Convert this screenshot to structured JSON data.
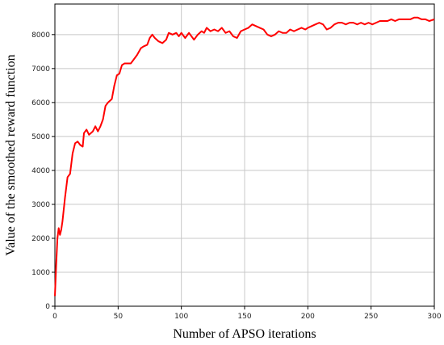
{
  "chart_data": {
    "type": "line",
    "xlabel": "Number of APSO iterations",
    "ylabel": "Value of the smoothed reward function",
    "x": [
      0,
      1,
      2,
      3,
      4,
      5,
      6,
      8,
      10,
      12,
      14,
      16,
      18,
      20,
      22,
      23,
      25,
      27,
      30,
      32,
      34,
      36,
      38,
      40,
      42,
      45,
      47,
      49,
      51,
      53,
      55,
      58,
      60,
      63,
      65,
      68,
      70,
      73,
      75,
      77,
      79,
      82,
      85,
      88,
      90,
      93,
      96,
      98,
      100,
      103,
      106,
      108,
      110,
      113,
      116,
      118,
      120,
      123,
      126,
      129,
      132,
      135,
      138,
      141,
      144,
      147,
      150,
      153,
      156,
      159,
      162,
      165,
      168,
      171,
      174,
      177,
      180,
      183,
      186,
      189,
      192,
      195,
      198,
      200,
      203,
      206,
      209,
      212,
      215,
      218,
      221,
      224,
      227,
      230,
      233,
      236,
      239,
      242,
      245,
      248,
      251,
      254,
      257,
      260,
      263,
      266,
      269,
      272,
      275,
      278,
      281,
      284,
      287,
      290,
      293,
      296,
      300
    ],
    "series": [
      {
        "name": "smoothed reward",
        "color": "#ff0000",
        "values": [
          300,
          1200,
          2000,
          2300,
          2100,
          2250,
          2500,
          3200,
          3800,
          3900,
          4500,
          4800,
          4850,
          4750,
          4700,
          5100,
          5200,
          5050,
          5150,
          5300,
          5150,
          5300,
          5500,
          5900,
          6000,
          6100,
          6500,
          6800,
          6850,
          7100,
          7150,
          7150,
          7150,
          7300,
          7400,
          7600,
          7650,
          7700,
          7900,
          8000,
          7900,
          7800,
          7750,
          7850,
          8050,
          8000,
          8050,
          7950,
          8050,
          7900,
          8050,
          7950,
          7850,
          8000,
          8100,
          8050,
          8200,
          8100,
          8150,
          8100,
          8200,
          8050,
          8100,
          7950,
          7900,
          8100,
          8150,
          8200,
          8300,
          8250,
          8200,
          8150,
          8000,
          7950,
          8000,
          8100,
          8050,
          8050,
          8150,
          8100,
          8150,
          8200,
          8150,
          8200,
          8250,
          8300,
          8350,
          8300,
          8150,
          8200,
          8300,
          8350,
          8350,
          8300,
          8350,
          8350,
          8300,
          8350,
          8300,
          8350,
          8300,
          8350,
          8400,
          8400,
          8400,
          8450,
          8400,
          8450,
          8450,
          8450,
          8450,
          8500,
          8500,
          8450,
          8450,
          8400,
          8450
        ]
      }
    ],
    "xlim": [
      0,
      300
    ],
    "ylim": [
      0,
      8900
    ],
    "xticks": [
      0,
      50,
      100,
      150,
      200,
      250,
      300
    ],
    "yticks": [
      0,
      1000,
      2000,
      3000,
      4000,
      5000,
      6000,
      7000,
      8000
    ],
    "grid": true
  }
}
